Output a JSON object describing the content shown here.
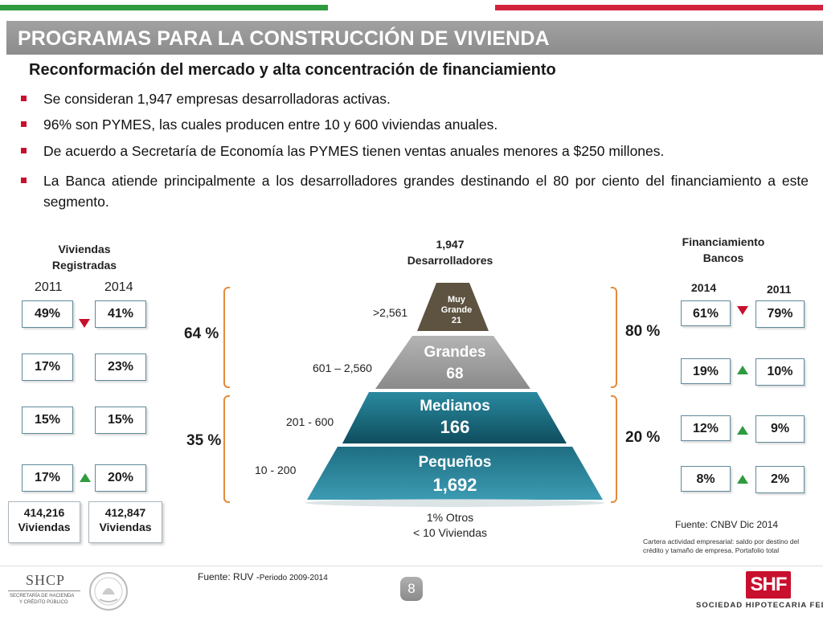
{
  "header": {
    "title": "PROGRAMAS  PARA LA CONSTRUCCIÓN DE VIVIENDA",
    "subtitle": "Reconformación del mercado y alta concentración de financiamiento"
  },
  "bullets": [
    "Se consideran 1,947 empresas desarrolladoras activas.",
    "96% son  PYMES,  las cuales producen entre  10 y 600 viviendas anuales.",
    "De acuerdo a Secretaría de Economía las PYMES  tienen ventas anuales menores a $250 millones.",
    "La Banca atiende principalmente a los  desarrolladores grandes destinando el 80 por ciento del financiamiento a este  segmento."
  ],
  "viviendas": {
    "title_line1": "Viviendas",
    "title_line2": "Registradas",
    "year_a": "2011",
    "year_b": "2014",
    "rows": [
      {
        "a": "49%",
        "b": "41%",
        "trend": "down"
      },
      {
        "a": "17%",
        "b": "23%",
        "trend": "none"
      },
      {
        "a": "15%",
        "b": "15%",
        "trend": "none"
      },
      {
        "a": "17%",
        "b": "20%",
        "trend": "up"
      }
    ],
    "total_a_line1": "414,216",
    "total_a_line2": "Viviendas",
    "total_b_line1": "412,847",
    "total_b_line2": "Viviendas",
    "source_prefix": "Fuente: RUV -",
    "source_suffix": "Periodo 2009-2014"
  },
  "pyramid": {
    "title_line1": "1,947",
    "title_line2": "Desarrolladores",
    "levels": [
      {
        "name_line1": "Muy",
        "name_line2": "Grande",
        "count": "21",
        "range": ">2,561",
        "color": "#5e5340"
      },
      {
        "name": "Grandes",
        "count": "68",
        "range": "601 – 2,560",
        "color": "#9a9a9a"
      },
      {
        "name": "Medianos",
        "count": "166",
        "range": "201 - 600",
        "color": "#1f6678"
      },
      {
        "name": "Pequeños",
        "count": "1,692",
        "range": "10 - 200",
        "color": "#3a8ea3"
      }
    ],
    "footer_line1": "1% Otros",
    "footer_line2": "< 10 Viviendas",
    "left_top_pct": "64 %",
    "left_bottom_pct": "35 %",
    "right_top_pct": "80 %",
    "right_bottom_pct": "20 %"
  },
  "financiamiento": {
    "title_line1": "Financiamiento",
    "title_line2": "Bancos",
    "year_a": "2014",
    "year_b": "2011",
    "rows": [
      {
        "a": "61%",
        "b": "79%",
        "trend": "down"
      },
      {
        "a": "19%",
        "b": "10%",
        "trend": "up"
      },
      {
        "a": "12%",
        "b": "9%",
        "trend": "up"
      },
      {
        "a": "8%",
        "b": "2%",
        "trend": "up"
      }
    ],
    "source": "Fuente: CNBV Dic 2014",
    "note": "Cartera actividad empresarial: saldo por destino del crédito y tamaño de empresa. Portafolio total"
  },
  "footer": {
    "shcp_abbr": "SHCP",
    "shcp_line1": "SECRETARÍA DE HACIENDA",
    "shcp_line2": "Y CRÉDITO PÚBLICO",
    "page_number": "8",
    "shf_logo": "SHF",
    "shf_name": "SOCIEDAD HIPOTECARIA FEDERAL"
  },
  "colors": {
    "accent_red": "#c8102e",
    "accent_green": "#2e9b3e",
    "bracket_orange": "#e58a3a",
    "title_gray": "#9a9a9a"
  }
}
